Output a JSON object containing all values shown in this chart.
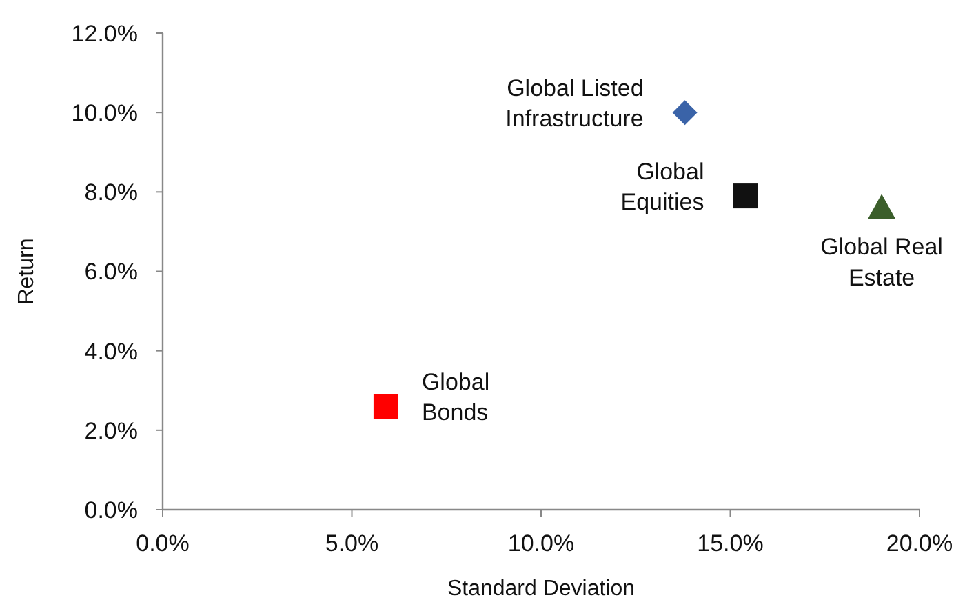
{
  "chart_data": {
    "type": "scatter",
    "xlabel": "Standard Deviation",
    "ylabel": "Return",
    "xlim": [
      0,
      20
    ],
    "xticks": [
      {
        "value": 0,
        "label": "0.0%"
      },
      {
        "value": 5,
        "label": "5.0%"
      },
      {
        "value": 10,
        "label": "10.0%"
      },
      {
        "value": 15,
        "label": "15.0%"
      },
      {
        "value": 20,
        "label": "20.0%"
      }
    ],
    "ylim": [
      0,
      12
    ],
    "yticks": [
      {
        "value": 0,
        "label": "0.0%"
      },
      {
        "value": 2,
        "label": "2.0%"
      },
      {
        "value": 4,
        "label": "4.0%"
      },
      {
        "value": 6,
        "label": "6.0%"
      },
      {
        "value": 8,
        "label": "8.0%"
      },
      {
        "value": 10,
        "label": "10.0%"
      },
      {
        "value": 12,
        "label": "12.0%"
      }
    ],
    "series": [
      {
        "name": "Global Bonds",
        "color": "#ff0000",
        "marker": "square",
        "x": [
          5.9
        ],
        "values": [
          2.6
        ]
      },
      {
        "name": "Global Listed Infrastructure",
        "color": "#3a63a8",
        "marker": "diamond",
        "x": [
          13.8
        ],
        "values": [
          10.0
        ]
      },
      {
        "name": "Global Equities",
        "color": "#111111",
        "marker": "square",
        "x": [
          15.4
        ],
        "values": [
          7.9
        ]
      },
      {
        "name": "Global Real Estate",
        "color": "#3b5e2b",
        "marker": "triangle",
        "x": [
          19.0
        ],
        "values": [
          7.6
        ]
      }
    ]
  }
}
